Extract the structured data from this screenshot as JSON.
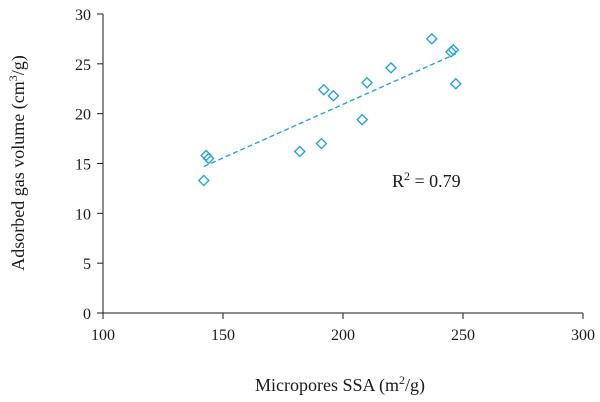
{
  "chart_data": {
    "type": "scatter",
    "x": [
      142,
      143,
      144,
      182,
      191,
      192,
      196,
      208,
      210,
      220,
      237,
      245,
      246,
      247
    ],
    "y": [
      13.3,
      15.8,
      15.5,
      16.2,
      17.0,
      22.4,
      21.8,
      19.4,
      23.1,
      24.6,
      27.5,
      26.2,
      26.4,
      23.0
    ],
    "trendline": {
      "type": "linear",
      "x": [
        142,
        247
      ],
      "y": [
        14.7,
        26.0
      ]
    },
    "xlabel": "Micropores SSA (m",
    "xlabel_sup": "2",
    "xlabel_tail": "/g)",
    "ylabel": "Adsorbed gas volume (cm",
    "ylabel_sup": "3",
    "ylabel_tail": "/g)",
    "xlim": [
      100,
      300
    ],
    "ylim": [
      0,
      30
    ],
    "xticks": [
      "100",
      "150",
      "200",
      "250",
      "300"
    ],
    "yticks": [
      "0",
      "5",
      "10",
      "15",
      "20",
      "25",
      "30"
    ],
    "annotation": {
      "text": "R",
      "sup": "2",
      "tail": " = 0.79"
    },
    "marker": "diamond",
    "color": "#29a3d9",
    "grid": false,
    "legend": "none"
  }
}
